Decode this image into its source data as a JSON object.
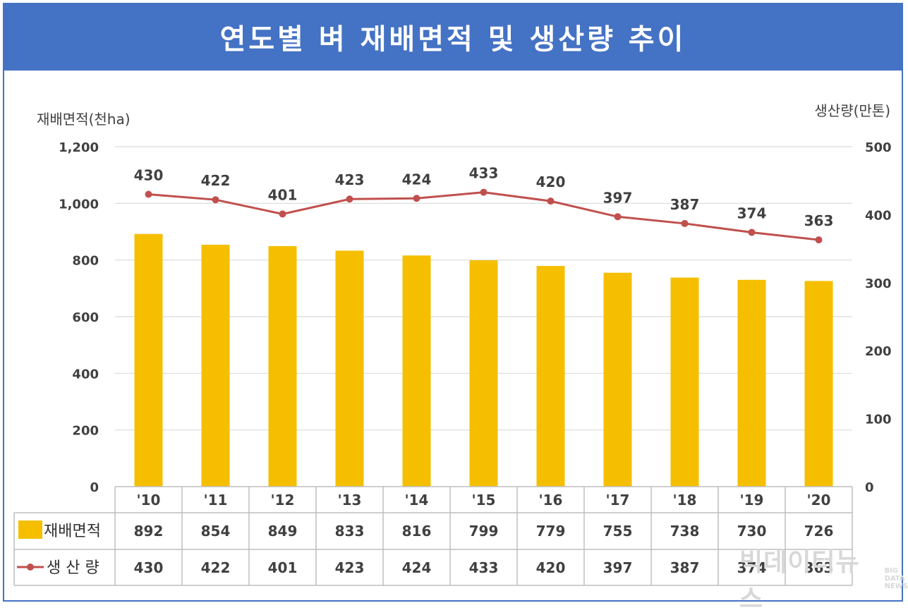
{
  "title": "연도별 벼 재배면적 및 생산량 추이",
  "watermark": {
    "main": "빅데이터뉴스",
    "sub1": "BIG",
    "sub2": "DATA",
    "sub3": "NEWS"
  },
  "colors": {
    "title_bg": "#4472c4",
    "bar": "#f5bf00",
    "line": "#c0504d",
    "grid": "#d9d9d9"
  },
  "chart_data": {
    "type": "bar+line",
    "categories": [
      "'10",
      "'11",
      "'12",
      "'13",
      "'14",
      "'15",
      "'16",
      "'17",
      "'18",
      "'19",
      "'20"
    ],
    "series": [
      {
        "name": "재배면적",
        "type": "bar",
        "axis": "left",
        "values": [
          892,
          854,
          849,
          833,
          816,
          799,
          779,
          755,
          738,
          730,
          726
        ]
      },
      {
        "name": "생 산 량",
        "type": "line",
        "axis": "right",
        "values": [
          430,
          422,
          401,
          423,
          424,
          433,
          420,
          397,
          387,
          374,
          363
        ]
      }
    ],
    "ylabel_left": "재배면적(천ha)",
    "ylabel_right": "생산량(만톤)",
    "ylim_left": [
      0,
      1200
    ],
    "ylim_right": [
      0,
      500
    ],
    "yticks_left": [
      "0",
      "200",
      "400",
      "600",
      "800",
      "1,000",
      "1,200"
    ],
    "yticks_right": [
      "0",
      "100",
      "200",
      "300",
      "400",
      "500"
    ],
    "data_table": true,
    "grid": true
  }
}
